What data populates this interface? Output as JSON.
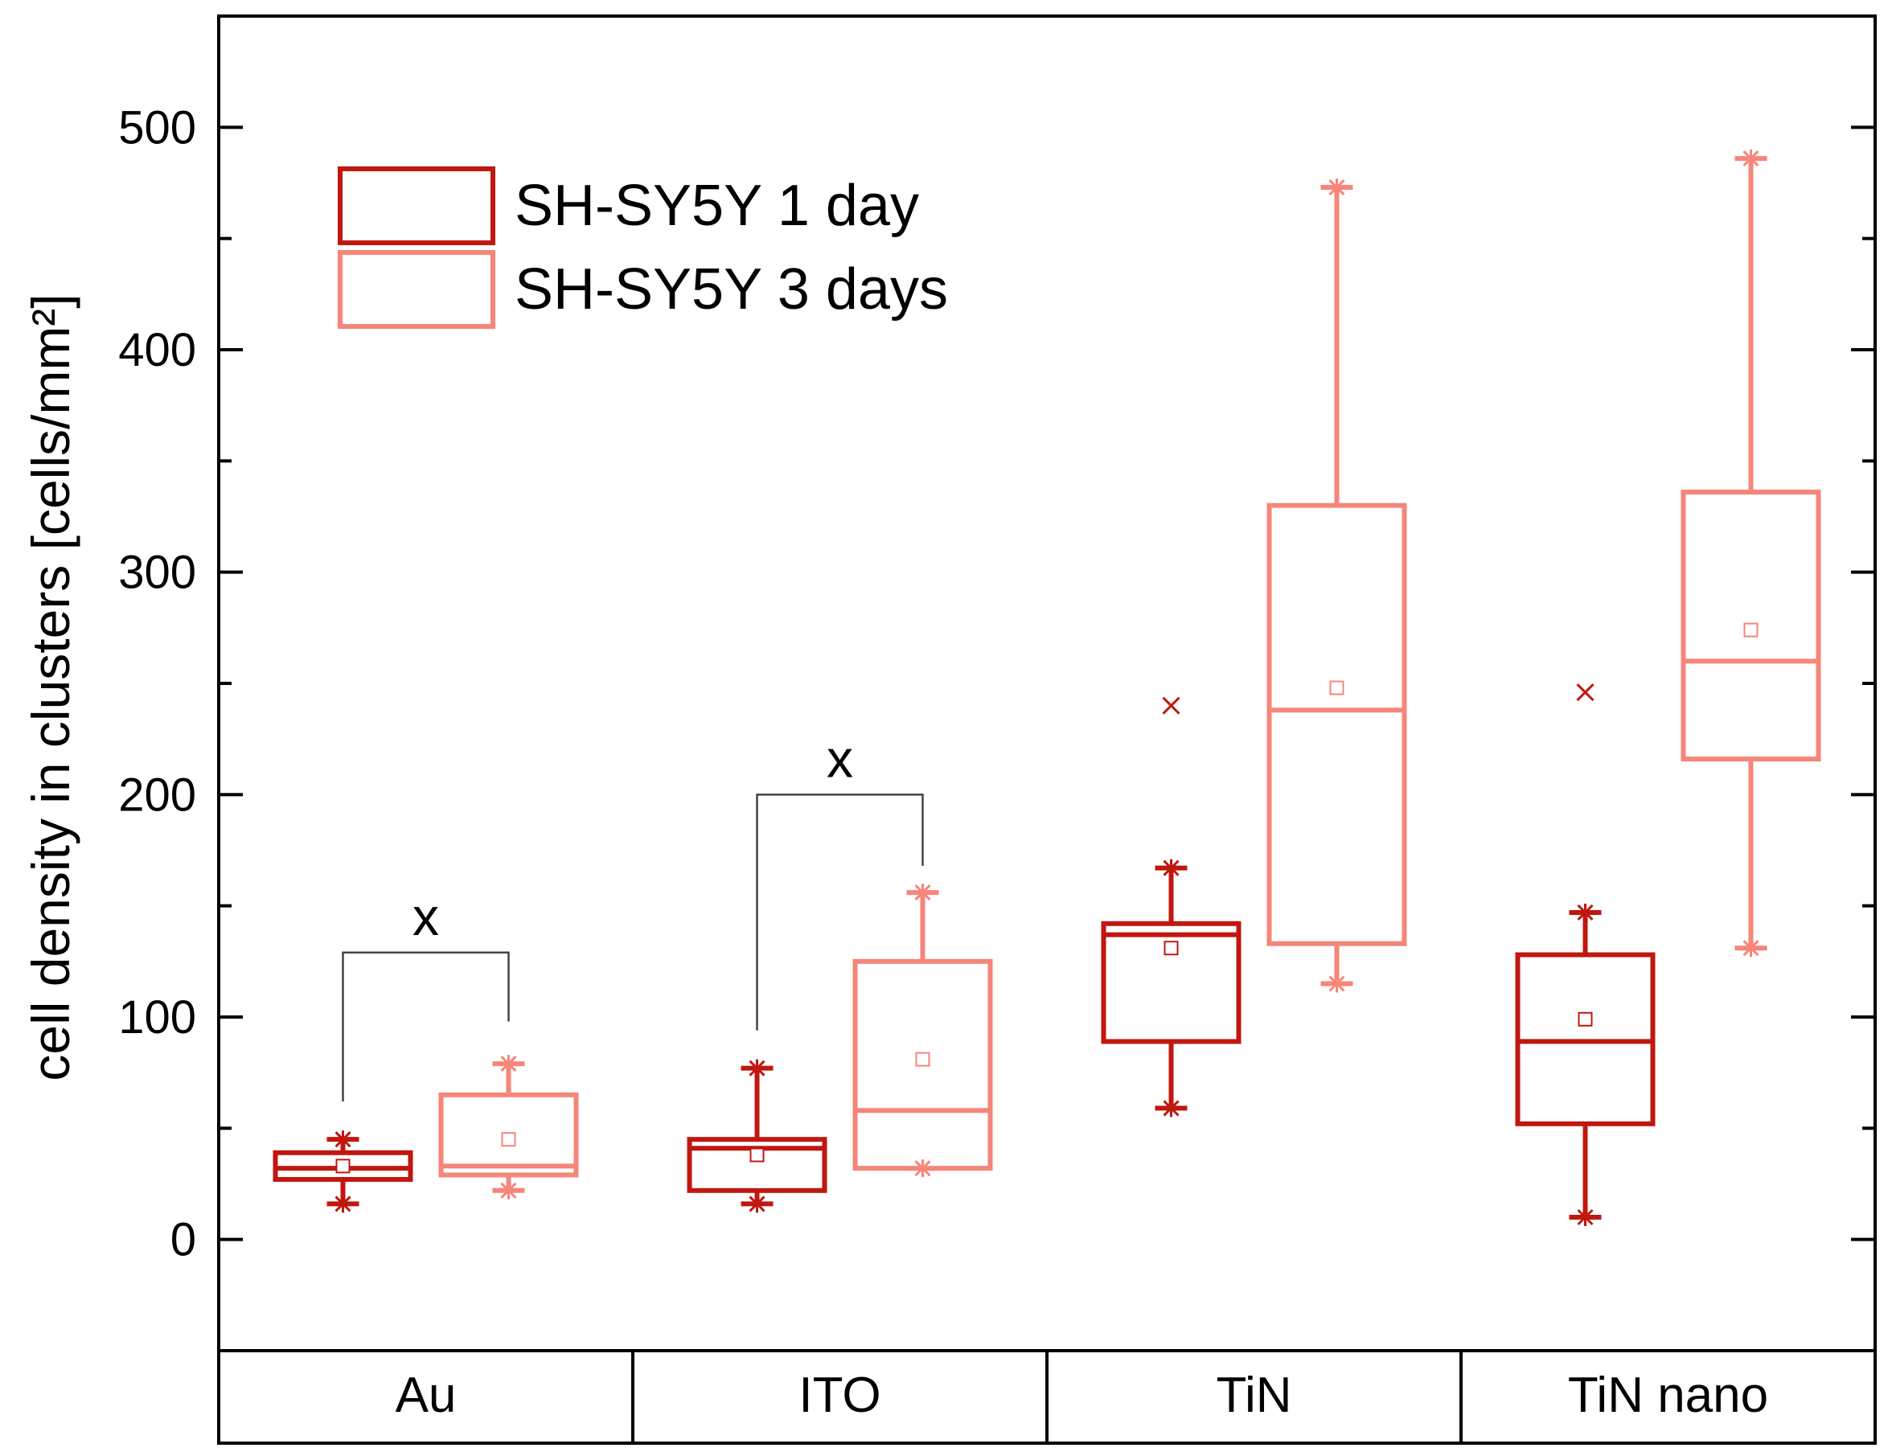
{
  "chart_data": {
    "type": "box",
    "title": "",
    "xlabel": "",
    "ylabel": "cell density in clusters [cells/mm²]",
    "ylim": [
      -50,
      550
    ],
    "yticks": [
      0,
      100,
      200,
      300,
      400,
      500
    ],
    "categories": [
      "Au",
      "ITO",
      "TiN",
      "TiN nano"
    ],
    "legend": {
      "position": "top-left"
    },
    "series": [
      {
        "name": "SH-SY5Y 1 day",
        "color": "#c0170f",
        "boxes": [
          {
            "category": "Au",
            "q1": 27,
            "median": 32,
            "q3": 39,
            "mean": 33,
            "whisker_low": 16,
            "whisker_high": 45,
            "outliers": []
          },
          {
            "category": "ITO",
            "q1": 22,
            "median": 41,
            "q3": 45,
            "mean": 38,
            "whisker_low": 16,
            "whisker_high": 77,
            "outliers": []
          },
          {
            "category": "TiN",
            "q1": 89,
            "median": 137,
            "q3": 142,
            "mean": 131,
            "whisker_low": 59,
            "whisker_high": 167,
            "outliers": [
              240
            ]
          },
          {
            "category": "TiN nano",
            "q1": 52,
            "median": 89,
            "q3": 128,
            "mean": 99,
            "whisker_low": 10,
            "whisker_high": 147,
            "outliers": [
              246
            ]
          }
        ]
      },
      {
        "name": "SH-SY5Y 3 days",
        "color": "#f6857a",
        "boxes": [
          {
            "category": "Au",
            "q1": 29,
            "median": 33,
            "q3": 65,
            "mean": 45,
            "whisker_low": 22,
            "whisker_high": 79,
            "outliers": []
          },
          {
            "category": "ITO",
            "q1": 32,
            "median": 58,
            "q3": 125,
            "mean": 81,
            "whisker_low": 32,
            "whisker_high": 156,
            "outliers": []
          },
          {
            "category": "TiN",
            "q1": 133,
            "median": 238,
            "q3": 330,
            "mean": 248,
            "whisker_low": 115,
            "whisker_high": 473,
            "outliers": []
          },
          {
            "category": "TiN nano",
            "q1": 216,
            "median": 260,
            "q3": 336,
            "mean": 274,
            "whisker_low": 131,
            "whisker_high": 486,
            "outliers": []
          }
        ]
      }
    ],
    "annotations": [
      {
        "label": "x",
        "category": "Au",
        "bracket_top": 129,
        "left_end": 62,
        "right_end": 98
      },
      {
        "label": "x",
        "category": "ITO",
        "bracket_top": 200,
        "left_end": 94,
        "right_end": 168
      }
    ]
  }
}
